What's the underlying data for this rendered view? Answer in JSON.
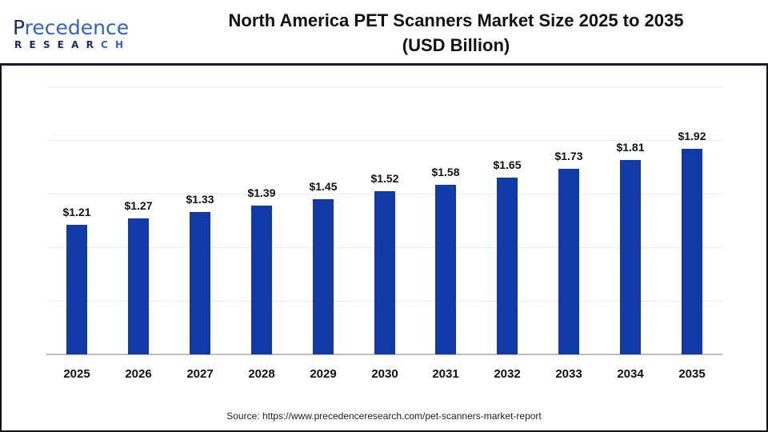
{
  "header": {
    "logo": {
      "word_prefix": "P",
      "word_main": "recedence",
      "subtitle": "RESEARCH",
      "subtitle_main": "RESEAR",
      "subtitle_accent": "CH"
    },
    "title_line1": "North America PET Scanners Market Size 2025 to 2035",
    "title_line2": "(USD Billion)"
  },
  "colors": {
    "bar": "#0f3aa8",
    "header_rule": "#141a3c",
    "logo_dark": "#1b2a6b",
    "logo_accent": "#2e62d9",
    "gridline": "#ececec",
    "axis": "#bdbdbd"
  },
  "footer": {
    "source": "Source: https://www.precedenceresearch.com/pet-scanners-market-report"
  },
  "chart_data": {
    "type": "bar",
    "title": "North America PET Scanners Market Size 2025 to 2035 (USD Billion)",
    "xlabel": "",
    "ylabel": "USD Billion",
    "categories": [
      "2025",
      "2026",
      "2027",
      "2028",
      "2029",
      "2030",
      "2031",
      "2032",
      "2033",
      "2034",
      "2035"
    ],
    "values": [
      1.21,
      1.27,
      1.33,
      1.39,
      1.45,
      1.52,
      1.58,
      1.65,
      1.73,
      1.81,
      1.92
    ],
    "value_labels": [
      "$1.21",
      "$1.27",
      "$1.33",
      "$1.39",
      "$1.45",
      "$1.52",
      "$1.58",
      "$1.65",
      "$1.73",
      "$1.81",
      "$1.92"
    ],
    "ylim": [
      0,
      2.5
    ],
    "gridlines": [
      0.5,
      1.0,
      1.5,
      2.0,
      2.5
    ],
    "grid": true,
    "legend": null,
    "y_axis_visible": false
  }
}
